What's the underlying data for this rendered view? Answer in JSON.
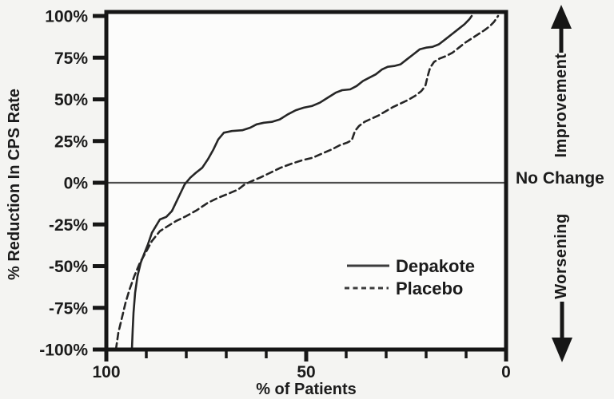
{
  "figure": {
    "background": "#f4f4f2",
    "ink_color": "#1b1b1b"
  },
  "chart_data": {
    "type": "line",
    "title": "",
    "xlabel": "% of Patients",
    "ylabel": "% Reduction In CPS Rate",
    "x_axis_reversed": true,
    "xlim": [
      100,
      0
    ],
    "ylim": [
      -100,
      100
    ],
    "grid": false,
    "x_ticks": [
      {
        "value": 100,
        "label": "100"
      },
      {
        "value": 50,
        "label": "50"
      },
      {
        "value": 0,
        "label": "0"
      }
    ],
    "x_minor_tick_step": 10,
    "y_ticks": [
      {
        "value": 100,
        "label": "100%"
      },
      {
        "value": 75,
        "label": "75%"
      },
      {
        "value": 50,
        "label": "50%"
      },
      {
        "value": 25,
        "label": "25%"
      },
      {
        "value": 0,
        "label": "0%"
      },
      {
        "value": -25,
        "label": "-25%"
      },
      {
        "value": -50,
        "label": "-50%"
      },
      {
        "value": -75,
        "label": "-75%"
      },
      {
        "value": -100,
        "label": "-100%"
      }
    ],
    "reference_line": {
      "y": 0,
      "label": "No Change"
    },
    "legend_position": "inside lower-right",
    "annotations": [
      {
        "text": "Improvement",
        "arrow": "up",
        "side": "right-top"
      },
      {
        "text": "No Change",
        "arrow": "none",
        "side": "right-middle"
      },
      {
        "text": "Worsening",
        "arrow": "down",
        "side": "right-bottom"
      }
    ],
    "series": [
      {
        "name": "Depakote",
        "style": "solid",
        "points_format": "[percent_of_patients, percent_reduction_cps]",
        "points": [
          [
            93.6,
            -100
          ],
          [
            93.4,
            -88
          ],
          [
            93.2,
            -78
          ],
          [
            92.8,
            -66
          ],
          [
            92.2,
            -56
          ],
          [
            91.4,
            -48
          ],
          [
            90.6,
            -43
          ],
          [
            89.6,
            -37
          ],
          [
            88.6,
            -30
          ],
          [
            87.6,
            -26
          ],
          [
            86.6,
            -22
          ],
          [
            85.0,
            -20.5
          ],
          [
            83.6,
            -17
          ],
          [
            82.4,
            -11
          ],
          [
            81.4,
            -6
          ],
          [
            80.4,
            -1
          ],
          [
            79.0,
            3
          ],
          [
            77.6,
            6
          ],
          [
            76.0,
            9
          ],
          [
            74.6,
            14
          ],
          [
            73.2,
            20
          ],
          [
            72.0,
            26
          ],
          [
            70.6,
            30
          ],
          [
            68.6,
            31
          ],
          [
            66.0,
            31.5
          ],
          [
            64.0,
            33
          ],
          [
            62.4,
            35
          ],
          [
            60.6,
            36
          ],
          [
            58.6,
            36.5
          ],
          [
            56.6,
            38
          ],
          [
            54.6,
            41
          ],
          [
            52.6,
            43.5
          ],
          [
            50.6,
            45
          ],
          [
            48.6,
            46
          ],
          [
            46.6,
            48
          ],
          [
            44.6,
            51
          ],
          [
            42.6,
            54
          ],
          [
            41.0,
            55.5
          ],
          [
            39.0,
            56
          ],
          [
            37.4,
            58
          ],
          [
            35.8,
            61
          ],
          [
            34.2,
            63
          ],
          [
            32.6,
            65
          ],
          [
            31.0,
            68
          ],
          [
            29.6,
            69.5
          ],
          [
            28.0,
            70
          ],
          [
            26.4,
            71
          ],
          [
            24.8,
            74
          ],
          [
            23.2,
            77
          ],
          [
            21.6,
            80
          ],
          [
            20.0,
            81
          ],
          [
            18.4,
            81.5
          ],
          [
            16.8,
            83
          ],
          [
            15.2,
            86
          ],
          [
            13.6,
            89
          ],
          [
            12.0,
            92
          ],
          [
            10.4,
            95
          ],
          [
            9.2,
            98
          ],
          [
            8.6,
            100
          ]
        ]
      },
      {
        "name": "Placebo",
        "style": "dashed",
        "points_format": "[percent_of_patients, percent_reduction_cps]",
        "points": [
          [
            97.6,
            -100
          ],
          [
            97.0,
            -90
          ],
          [
            96.2,
            -82
          ],
          [
            95.2,
            -72
          ],
          [
            94.2,
            -64
          ],
          [
            93.0,
            -56
          ],
          [
            91.6,
            -48
          ],
          [
            90.2,
            -42
          ],
          [
            88.6,
            -35
          ],
          [
            86.6,
            -29
          ],
          [
            84.6,
            -26
          ],
          [
            82.6,
            -23
          ],
          [
            80.0,
            -20
          ],
          [
            77.4,
            -16.5
          ],
          [
            74.6,
            -12
          ],
          [
            72.0,
            -9
          ],
          [
            69.4,
            -6.5
          ],
          [
            67.0,
            -4
          ],
          [
            65.4,
            -1
          ],
          [
            63.6,
            1
          ],
          [
            61.6,
            3
          ],
          [
            59.0,
            6
          ],
          [
            56.4,
            9
          ],
          [
            53.6,
            11.5
          ],
          [
            51.0,
            13.5
          ],
          [
            48.4,
            15
          ],
          [
            46.0,
            17.5
          ],
          [
            43.6,
            20
          ],
          [
            41.6,
            22.5
          ],
          [
            39.8,
            24
          ],
          [
            38.6,
            25.5
          ],
          [
            37.8,
            31
          ],
          [
            36.8,
            34
          ],
          [
            35.4,
            36.5
          ],
          [
            33.6,
            38.5
          ],
          [
            31.8,
            40.5
          ],
          [
            30.0,
            43
          ],
          [
            28.2,
            45.5
          ],
          [
            26.4,
            47.5
          ],
          [
            24.6,
            49.5
          ],
          [
            22.8,
            52
          ],
          [
            21.2,
            55
          ],
          [
            20.2,
            58
          ],
          [
            19.6,
            64
          ],
          [
            19.0,
            69
          ],
          [
            18.0,
            72.5
          ],
          [
            16.6,
            74.5
          ],
          [
            15.0,
            76
          ],
          [
            13.4,
            78
          ],
          [
            11.8,
            81
          ],
          [
            10.2,
            84
          ],
          [
            8.6,
            86.5
          ],
          [
            7.0,
            89
          ],
          [
            5.4,
            91.5
          ],
          [
            4.0,
            94
          ],
          [
            3.0,
            96.5
          ],
          [
            2.4,
            98.5
          ],
          [
            2.0,
            100
          ]
        ]
      }
    ]
  },
  "legend": {
    "items": [
      {
        "label": "Depakote",
        "line": "solid"
      },
      {
        "label": "Placebo",
        "line": "dashed"
      }
    ]
  },
  "right_margin": {
    "improvement_label": "Improvement",
    "no_change_label": "No Change",
    "worsening_label": "Worsening"
  }
}
